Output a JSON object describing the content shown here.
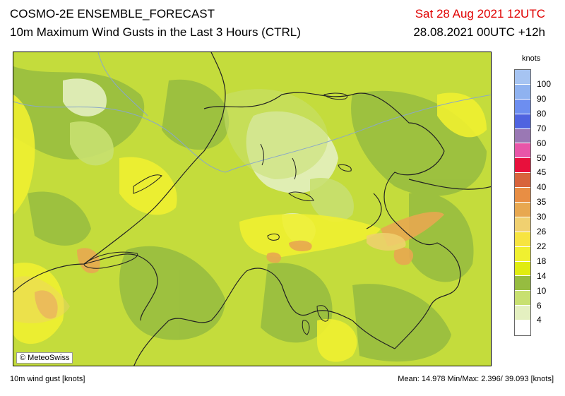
{
  "header": {
    "title": "COSMO-2E ENSEMBLE_FORECAST",
    "subtitle": "10m Maximum Wind Gusts in the Last 3 Hours (CTRL)",
    "valid_time": "Sat 28 Aug 2021 12UTC",
    "run_time": "28.08.2021 00UTC +12h"
  },
  "map": {
    "copyright": "© MeteoSwiss"
  },
  "legend": {
    "unit": "knots",
    "levels": [
      {
        "label": "100",
        "color": "#a6c4f2"
      },
      {
        "label": "90",
        "color": "#8fb2f0"
      },
      {
        "label": "80",
        "color": "#6d8ef0"
      },
      {
        "label": "70",
        "color": "#4f63e0"
      },
      {
        "label": "60",
        "color": "#9a78b4"
      },
      {
        "label": "50",
        "color": "#e855a8"
      },
      {
        "label": "45",
        "color": "#e8103c"
      },
      {
        "label": "40",
        "color": "#d8643c"
      },
      {
        "label": "35",
        "color": "#e88e44"
      },
      {
        "label": "30",
        "color": "#e8a850"
      },
      {
        "label": "26",
        "color": "#f0d070"
      },
      {
        "label": "22",
        "color": "#f7e440"
      },
      {
        "label": "18",
        "color": "#f0f030"
      },
      {
        "label": "14",
        "color": "#e0ec10"
      },
      {
        "label": "10",
        "color": "#96bc40"
      },
      {
        "label": "6",
        "color": "#c8e070"
      },
      {
        "label": "4",
        "color": "#e4f0c0"
      },
      {
        "label": "",
        "color": "#ffffff"
      }
    ]
  },
  "footer": {
    "variable": "10m wind gust [knots]",
    "stats": "Mean: 14.978 Min/Max: 2.396/ 39.093 [knots]"
  }
}
